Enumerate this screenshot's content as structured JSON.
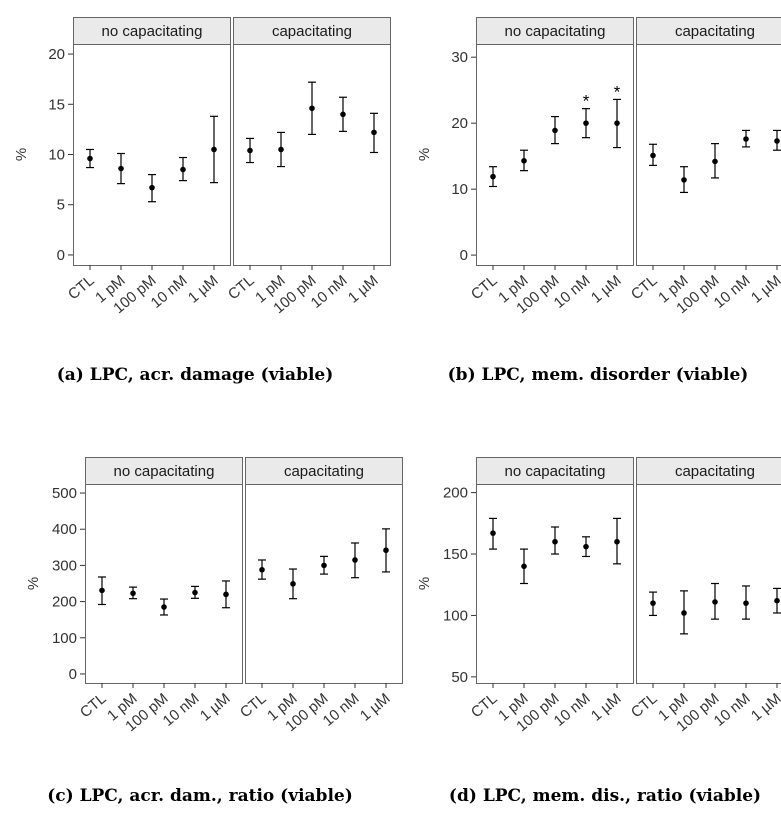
{
  "chart_data": [
    {
      "type": "scatter",
      "caption": "(a) LPC, acr. damage (viable)",
      "ylabel": "%",
      "ylim": [
        -1,
        21
      ],
      "yticks": [
        0,
        5,
        10,
        15,
        20
      ],
      "categories": [
        "CTL",
        "1 pM",
        "100 pM",
        "10 nM",
        "1 µM"
      ],
      "panels": [
        {
          "label": "no capacitating",
          "mean": [
            9.6,
            8.6,
            6.7,
            8.5,
            10.5
          ],
          "lower": [
            8.7,
            7.1,
            5.3,
            7.4,
            7.2
          ],
          "upper": [
            10.5,
            10.1,
            8.0,
            9.7,
            13.8
          ],
          "sig": [
            "",
            "",
            "",
            "",
            ""
          ]
        },
        {
          "label": "capacitating",
          "mean": [
            10.4,
            10.5,
            14.6,
            14.0,
            12.2
          ],
          "lower": [
            9.2,
            8.8,
            12.0,
            12.3,
            10.2
          ],
          "upper": [
            11.6,
            12.2,
            17.2,
            15.7,
            14.1
          ],
          "sig": [
            "",
            "",
            "",
            "",
            ""
          ]
        }
      ]
    },
    {
      "type": "scatter",
      "caption": "(b) LPC, mem. disorder (viable)",
      "ylabel": "%",
      "ylim": [
        -1.5,
        32
      ],
      "yticks": [
        0,
        10,
        20,
        30
      ],
      "categories": [
        "CTL",
        "1 pM",
        "100 pM",
        "10 nM",
        "1 µM"
      ],
      "panels": [
        {
          "label": "no capacitating",
          "mean": [
            11.9,
            14.3,
            18.9,
            20.0,
            20.0
          ],
          "lower": [
            10.4,
            12.8,
            16.9,
            17.8,
            16.3
          ],
          "upper": [
            13.4,
            15.9,
            21.0,
            22.2,
            23.6
          ],
          "sig": [
            "",
            "",
            "",
            "*",
            "*"
          ]
        },
        {
          "label": "capacitating",
          "mean": [
            15.1,
            11.4,
            14.2,
            17.6,
            17.3
          ],
          "lower": [
            13.6,
            9.5,
            11.7,
            16.4,
            15.9
          ],
          "upper": [
            16.8,
            13.4,
            16.9,
            18.9,
            18.9
          ],
          "sig": [
            "",
            "",
            "",
            "",
            ""
          ]
        }
      ]
    },
    {
      "type": "scatter",
      "caption": "(c) LPC, acr. dam., ratio (viable)",
      "ylabel": "%",
      "ylim": [
        -25,
        525
      ],
      "yticks": [
        0,
        100,
        200,
        300,
        400,
        500
      ],
      "categories": [
        "CTL",
        "1 pM",
        "100 pM",
        "10 nM",
        "1 µM"
      ],
      "panels": [
        {
          "label": "no capacitating",
          "mean": [
            231,
            223,
            185,
            225,
            220
          ],
          "lower": [
            192,
            208,
            163,
            209,
            183
          ],
          "upper": [
            268,
            240,
            207,
            242,
            257
          ],
          "sig": [
            "",
            "",
            "",
            "",
            ""
          ]
        },
        {
          "label": "capacitating",
          "mean": [
            288,
            249,
            300,
            315,
            342
          ],
          "lower": [
            262,
            208,
            276,
            266,
            282
          ],
          "upper": [
            315,
            290,
            325,
            362,
            401
          ],
          "sig": [
            "",
            "",
            "",
            "",
            ""
          ]
        }
      ]
    },
    {
      "type": "scatter",
      "caption": "(d) LPC, mem. dis., ratio (viable)",
      "ylabel": "%",
      "ylim": [
        45,
        207
      ],
      "yticks": [
        50,
        100,
        150,
        200
      ],
      "categories": [
        "CTL",
        "1 pM",
        "100 pM",
        "10 nM",
        "1 µM"
      ],
      "panels": [
        {
          "label": "no capacitating",
          "mean": [
            167,
            140,
            160,
            156,
            160
          ],
          "lower": [
            154,
            126,
            150,
            148,
            142
          ],
          "upper": [
            179,
            154,
            172,
            164,
            179
          ],
          "sig": [
            "",
            "",
            "",
            "",
            ""
          ]
        },
        {
          "label": "capacitating",
          "mean": [
            110,
            102,
            111,
            110,
            112
          ],
          "lower": [
            100,
            85,
            97,
            97,
            102
          ],
          "upper": [
            119,
            120,
            126,
            124,
            122
          ],
          "sig": [
            "",
            "",
            "",
            "",
            ""
          ]
        }
      ]
    }
  ]
}
